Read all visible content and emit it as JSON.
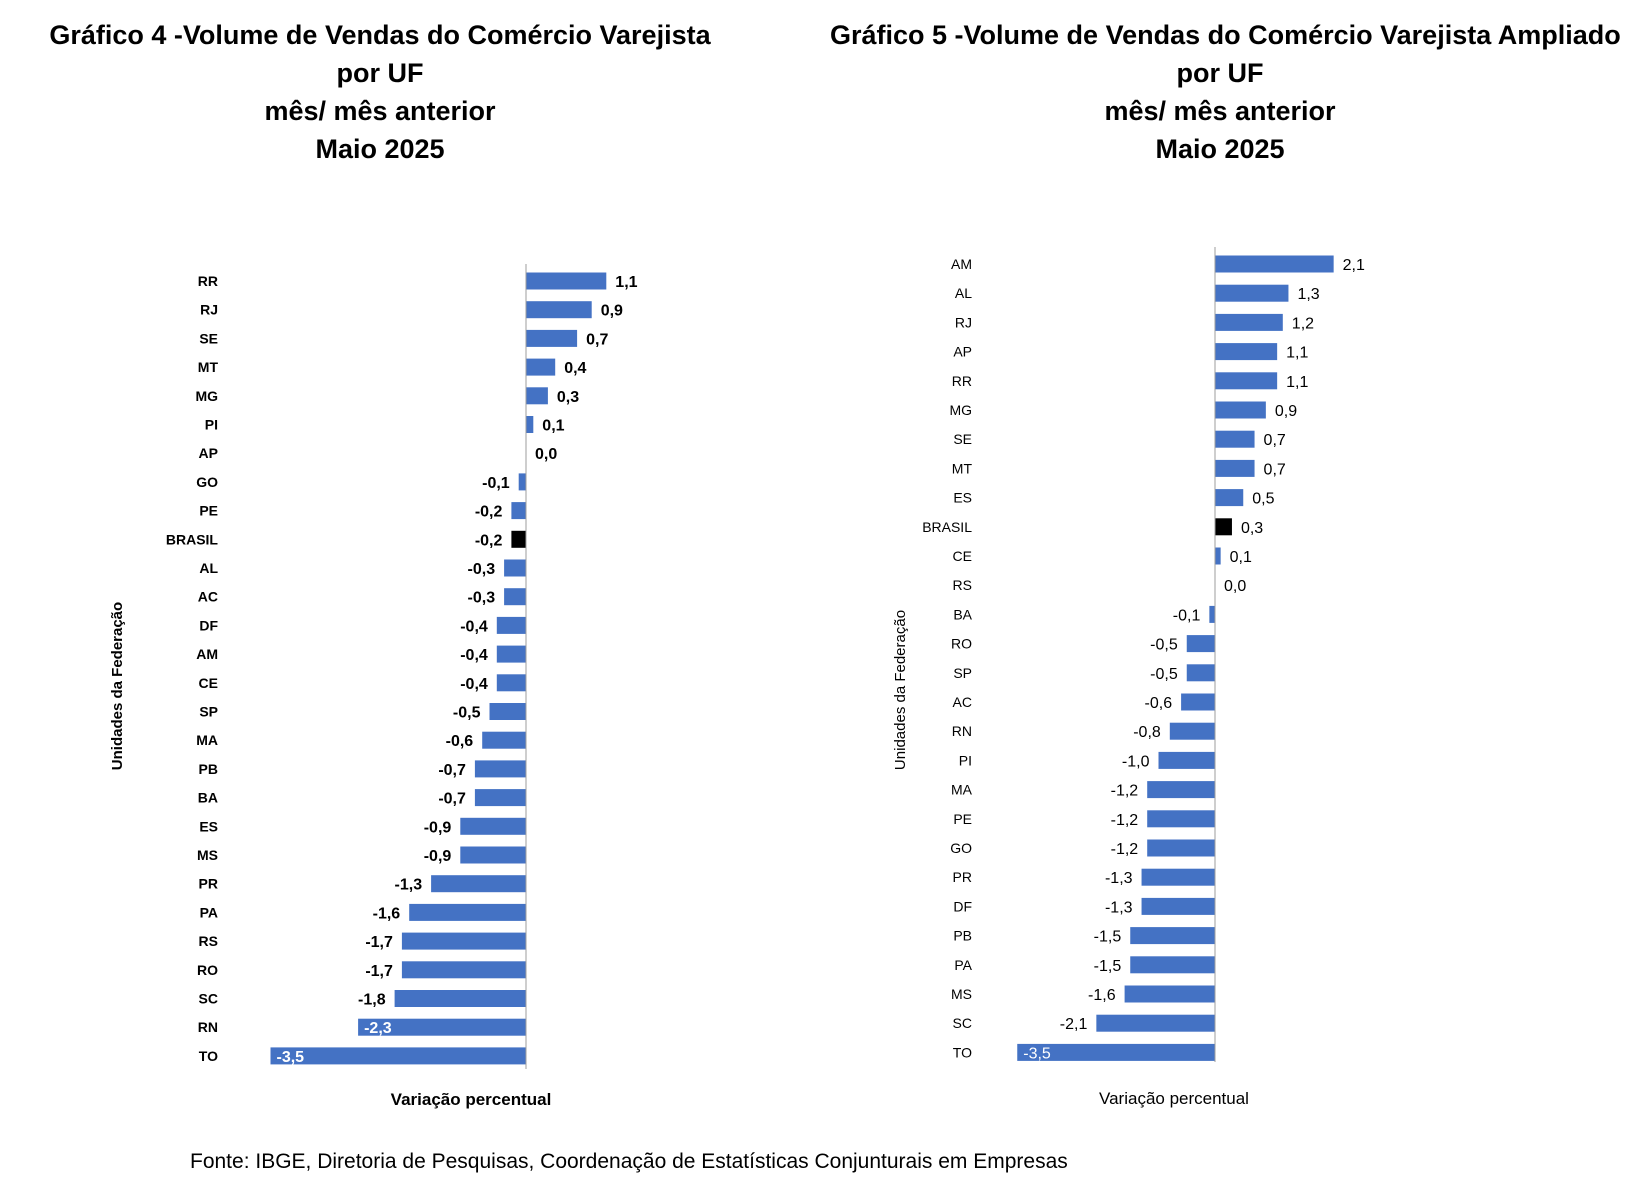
{
  "charts": [
    {
      "title_lines": [
        "Gráfico 4 -Volume de Vendas do Comércio Varejista",
        "por UF",
        "mês/ mês anterior",
        "Maio 2025"
      ]
    },
    {
      "title_lines": [
        "Gráfico 5 -Volume de Vendas do Comércio Varejista Ampliado",
        "por UF",
        "mês/ mês anterior",
        "Maio 2025"
      ]
    }
  ],
  "chart_data": [
    {
      "type": "bar",
      "orientation": "horizontal",
      "ylabel": "Unidades da Federação",
      "xlabel": "Variação percentual",
      "categories": [
        "RR",
        "RJ",
        "SE",
        "MT",
        "MG",
        "PI",
        "AP",
        "GO",
        "PE",
        "BRASIL",
        "AL",
        "AC",
        "DF",
        "AM",
        "CE",
        "SP",
        "MA",
        "PB",
        "BA",
        "ES",
        "MS",
        "PR",
        "PA",
        "RS",
        "RO",
        "SC",
        "RN",
        "TO"
      ],
      "values": [
        1.1,
        0.9,
        0.7,
        0.4,
        0.3,
        0.1,
        0.0,
        -0.1,
        -0.2,
        -0.2,
        -0.3,
        -0.3,
        -0.4,
        -0.4,
        -0.4,
        -0.5,
        -0.6,
        -0.7,
        -0.7,
        -0.9,
        -0.9,
        -1.3,
        -1.6,
        -1.7,
        -1.7,
        -1.8,
        -2.3,
        -3.5
      ],
      "data_labels": [
        "1,1",
        "0,9",
        "0,7",
        "0,4",
        "0,3",
        "0,1",
        "0,0",
        "-0,1",
        "-0,2",
        "-0,2",
        "-0,3",
        "-0,3",
        "-0,4",
        "-0,4",
        "-0,4",
        "-0,5",
        "-0,6",
        "-0,7",
        "-0,7",
        "-0,9",
        "-0,9",
        "-1,3",
        "-1,6",
        "-1,7",
        "-1,7",
        "-1,8",
        "-2,3",
        "-3,5"
      ],
      "highlight_category": "BRASIL",
      "colors": {
        "bar": "#4472C4",
        "highlight": "#000000"
      }
    },
    {
      "type": "bar",
      "orientation": "horizontal",
      "ylabel": "Unidades da Federação",
      "xlabel": "Variação percentual",
      "categories": [
        "AM",
        "AL",
        "RJ",
        "AP",
        "RR",
        "MG",
        "SE",
        "MT",
        "ES",
        "BRASIL",
        "CE",
        "RS",
        "BA",
        "RO",
        "SP",
        "AC",
        "RN",
        "PI",
        "MA",
        "PE",
        "GO",
        "PR",
        "DF",
        "PB",
        "PA",
        "MS",
        "SC",
        "TO"
      ],
      "values": [
        2.1,
        1.3,
        1.2,
        1.1,
        1.1,
        0.9,
        0.7,
        0.7,
        0.5,
        0.3,
        0.1,
        0.0,
        -0.1,
        -0.5,
        -0.5,
        -0.6,
        -0.8,
        -1.0,
        -1.2,
        -1.2,
        -1.2,
        -1.3,
        -1.3,
        -1.5,
        -1.5,
        -1.6,
        -2.1,
        -3.5
      ],
      "data_labels": [
        "2,1",
        "1,3",
        "1,2",
        "1,1",
        "1,1",
        "0,9",
        "0,7",
        "0,7",
        "0,5",
        "0,3",
        "0,1",
        "0,0",
        "-0,1",
        "-0,5",
        "-0,5",
        "-0,6",
        "-0,8",
        "-1,0",
        "-1,2",
        "-1,2",
        "-1,2",
        "-1,3",
        "-1,3",
        "-1,5",
        "-1,5",
        "-1,6",
        "-2,1",
        "-3,5"
      ],
      "highlight_category": "BRASIL",
      "colors": {
        "bar": "#4472C4",
        "highlight": "#000000"
      }
    }
  ],
  "source": "Fonte: IBGE, Diretoria de Pesquisas, Coordenação de Estatísticas Conjunturais em Empresas"
}
